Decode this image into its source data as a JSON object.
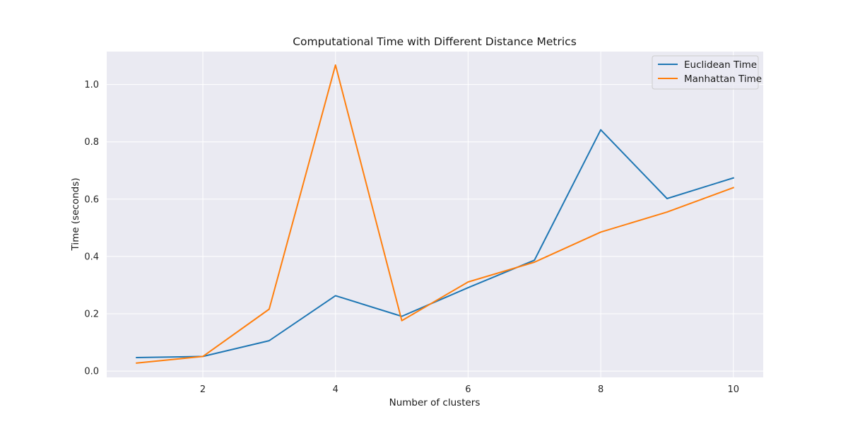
{
  "chart_data": {
    "type": "line",
    "title": "Computational Time with Different Distance Metrics",
    "xlabel": "Number of clusters",
    "ylabel": "Time (seconds)",
    "x": [
      1,
      2,
      3,
      4,
      5,
      6,
      7,
      8,
      9,
      10
    ],
    "xlim": [
      0.55,
      10.45
    ],
    "ylim": [
      -0.022,
      1.115
    ],
    "xticks": [
      2,
      4,
      6,
      8,
      10
    ],
    "yticks": [
      0.0,
      0.2,
      0.4,
      0.6,
      0.8,
      1.0
    ],
    "grid": true,
    "legend_position": "top-right",
    "plot_background": "#eaeaf2",
    "series": [
      {
        "name": "Euclidean Time",
        "color": "#1f77b4",
        "values": [
          0.047,
          0.051,
          0.106,
          0.263,
          0.191,
          0.291,
          0.387,
          0.842,
          0.602,
          0.674
        ]
      },
      {
        "name": "Manhattan Time",
        "color": "#ff7f0e",
        "values": [
          0.028,
          0.051,
          0.216,
          1.068,
          0.176,
          0.311,
          0.38,
          0.485,
          0.555,
          0.64
        ]
      }
    ]
  }
}
